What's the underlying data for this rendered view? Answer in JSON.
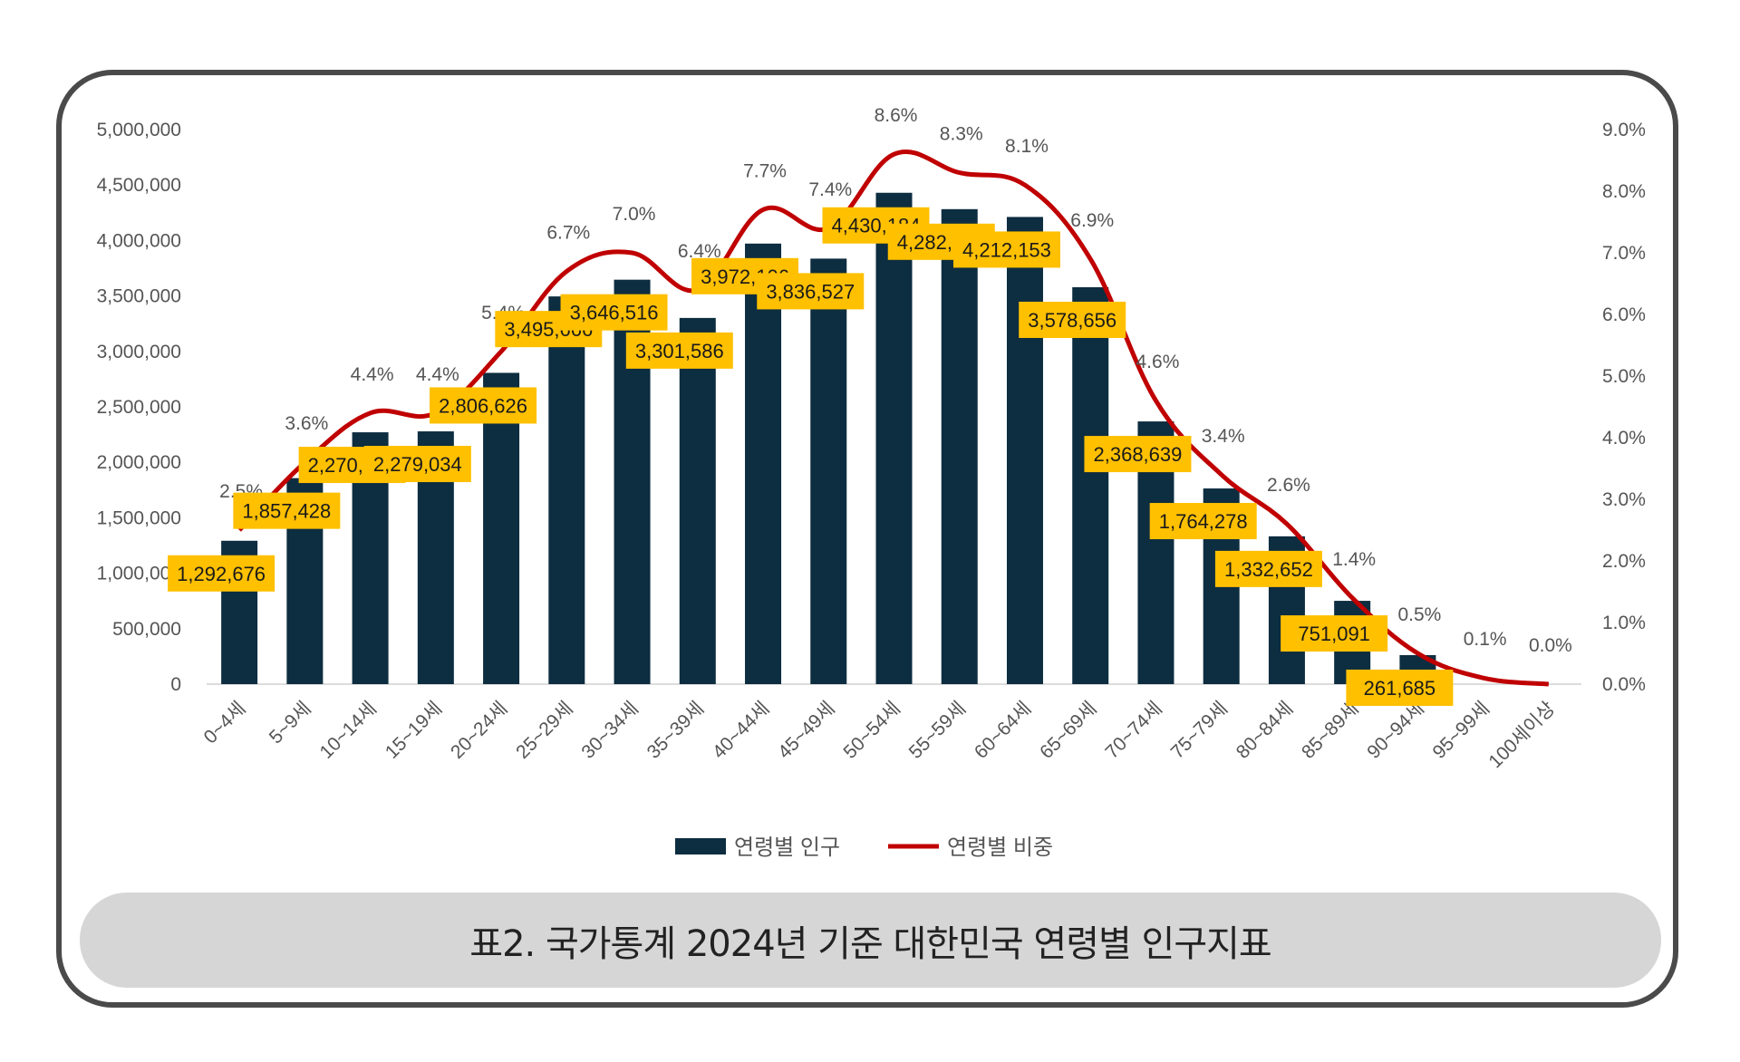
{
  "caption": "표2. 국가통계 2024년 기준 대한민국 연령별 인구지표",
  "chart_data": {
    "type": "bar",
    "categories": [
      "0~4세",
      "5~9세",
      "10~14세",
      "15~19세",
      "20~24세",
      "25~29세",
      "30~34세",
      "35~39세",
      "40~44세",
      "45~49세",
      "50~54세",
      "55~59세",
      "60~64세",
      "65~69세",
      "70~74세",
      "75~79세",
      "80~84세",
      "85~89세",
      "90~94세",
      "95~99세",
      "100세이상"
    ],
    "series": [
      {
        "name": "연령별 인구",
        "kind": "bar",
        "axis": "left",
        "color": "#0d2d40",
        "values": [
          1292676,
          1857428,
          2270694,
          2279034,
          2806626,
          3495666,
          3646516,
          3301586,
          3972106,
          3836527,
          4430184,
          4282631,
          4212153,
          3578656,
          2368639,
          1764278,
          1332652,
          751091,
          261685,
          null,
          null
        ],
        "labels": [
          "1,292,676",
          "1,857,428",
          "2,270,694",
          "2,279,034",
          "2,806,626",
          "3,495,666",
          "3,646,516",
          "3,301,586",
          "3,972,106",
          "3,836,527",
          "4,430,184",
          "4,282,631",
          "4,212,153",
          "3,578,656",
          "2,368,639",
          "1,764,278",
          "1,332,652",
          "751,091",
          "261,685",
          "",
          ""
        ]
      },
      {
        "name": "연령별 비중",
        "kind": "line",
        "axis": "right",
        "color": "#c00000",
        "values": [
          2.5,
          3.6,
          4.4,
          4.4,
          5.4,
          6.7,
          7.0,
          6.4,
          7.7,
          7.4,
          8.6,
          8.3,
          8.1,
          6.9,
          4.6,
          3.4,
          2.6,
          1.4,
          0.5,
          0.1,
          0.0
        ],
        "labels": [
          "2.5%",
          "3.6%",
          "4.4%",
          "4.4%",
          "5.4%",
          "6.7%",
          "7.0%",
          "6.4%",
          "7.7%",
          "7.4%",
          "8.6%",
          "8.3%",
          "8.1%",
          "6.9%",
          "4.6%",
          "3.4%",
          "2.6%",
          "1.4%",
          "0.5%",
          "0.1%",
          "0.0%"
        ]
      }
    ],
    "y_left": {
      "min": 0,
      "max": 5000000,
      "ticks": [
        "0",
        "500,000",
        "1,000,000",
        "1,500,000",
        "2,000,000",
        "2,500,000",
        "3,000,000",
        "3,500,000",
        "4,000,000",
        "4,500,000",
        "5,000,000"
      ]
    },
    "y_right": {
      "min": 0,
      "max": 9,
      "ticks": [
        "0.0%",
        "1.0%",
        "2.0%",
        "3.0%",
        "4.0%",
        "5.0%",
        "6.0%",
        "7.0%",
        "8.0%",
        "9.0%"
      ]
    },
    "label_color": "#ffc000",
    "legend_position": "bottom",
    "grid": false
  }
}
